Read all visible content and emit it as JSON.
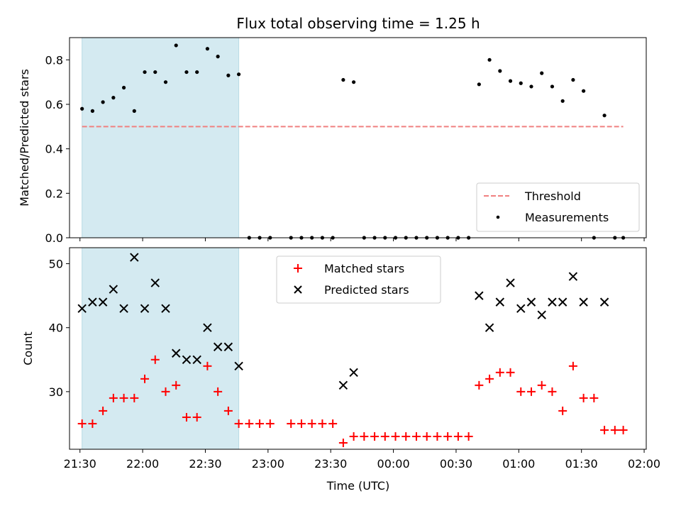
{
  "chart_data": [
    {
      "type": "scatter",
      "panel": "top",
      "title": "Flux total observing time = 1.25 h",
      "xlabel": "",
      "ylabel": "Matched/Predicted stars",
      "xlim": [
        "21:25",
        "02:01"
      ],
      "ylim": [
        0,
        0.9
      ],
      "yticks": [
        "0.0",
        "0.2",
        "0.4",
        "0.6",
        "0.8"
      ],
      "grid": false,
      "legend": "lower-right",
      "shaded_span": [
        "21:31",
        "22:46"
      ],
      "threshold": {
        "name": "Threshold",
        "y": 0.5,
        "x_range": [
          "21:31",
          "01:50"
        ]
      },
      "series": [
        {
          "name": "Measurements",
          "points": [
            [
              "21:31",
              0.58
            ],
            [
              "21:36",
              0.57
            ],
            [
              "21:41",
              0.61
            ],
            [
              "21:46",
              0.63
            ],
            [
              "21:51",
              0.675
            ],
            [
              "21:56",
              0.57
            ],
            [
              "22:01",
              0.745
            ],
            [
              "22:06",
              0.745
            ],
            [
              "22:11",
              0.7
            ],
            [
              "22:16",
              0.865
            ],
            [
              "22:21",
              0.745
            ],
            [
              "22:26",
              0.745
            ],
            [
              "22:31",
              0.85
            ],
            [
              "22:36",
              0.815
            ],
            [
              "22:41",
              0.73
            ],
            [
              "22:46",
              0.735
            ],
            [
              "22:51",
              0.0
            ],
            [
              "22:56",
              0.0
            ],
            [
              "23:01",
              0.0
            ],
            [
              "23:11",
              0.0
            ],
            [
              "23:16",
              0.0
            ],
            [
              "23:21",
              0.0
            ],
            [
              "23:26",
              0.0
            ],
            [
              "23:31",
              0.0
            ],
            [
              "23:36",
              0.71
            ],
            [
              "23:41",
              0.7
            ],
            [
              "23:46",
              0.0
            ],
            [
              "23:51",
              0.0
            ],
            [
              "23:56",
              0.0
            ],
            [
              "00:01",
              0.0
            ],
            [
              "00:06",
              0.0
            ],
            [
              "00:11",
              0.0
            ],
            [
              "00:16",
              0.0
            ],
            [
              "00:21",
              0.0
            ],
            [
              "00:26",
              0.0
            ],
            [
              "00:31",
              0.0
            ],
            [
              "00:36",
              0.0
            ],
            [
              "00:41",
              0.69
            ],
            [
              "00:46",
              0.8
            ],
            [
              "00:51",
              0.75
            ],
            [
              "00:56",
              0.705
            ],
            [
              "01:01",
              0.695
            ],
            [
              "01:06",
              0.68
            ],
            [
              "01:11",
              0.74
            ],
            [
              "01:16",
              0.68
            ],
            [
              "01:21",
              0.615
            ],
            [
              "01:26",
              0.71
            ],
            [
              "01:31",
              0.66
            ],
            [
              "01:36",
              0.0
            ],
            [
              "01:41",
              0.55
            ],
            [
              "01:46",
              0.0
            ],
            [
              "01:50",
              0.0
            ]
          ]
        }
      ]
    },
    {
      "type": "scatter",
      "panel": "bottom",
      "title": "",
      "xlabel": "Time (UTC)",
      "ylabel": "Count",
      "xlim": [
        "21:25",
        "02:01"
      ],
      "ylim": [
        21,
        52.5
      ],
      "xticks": [
        "21:30",
        "22:00",
        "22:30",
        "23:00",
        "23:30",
        "00:00",
        "00:30",
        "01:00",
        "01:30",
        "02:00"
      ],
      "yticks": [
        "30",
        "40",
        "50"
      ],
      "grid": false,
      "legend": "upper-center",
      "shaded_span": [
        "21:31",
        "22:46"
      ],
      "series": [
        {
          "name": "Matched stars",
          "marker": "plus",
          "points": [
            [
              "21:31",
              25
            ],
            [
              "21:36",
              25
            ],
            [
              "21:41",
              27
            ],
            [
              "21:46",
              29
            ],
            [
              "21:51",
              29
            ],
            [
              "21:56",
              29
            ],
            [
              "22:01",
              32
            ],
            [
              "22:06",
              35
            ],
            [
              "22:11",
              30
            ],
            [
              "22:16",
              31
            ],
            [
              "22:21",
              26
            ],
            [
              "22:26",
              26
            ],
            [
              "22:31",
              34
            ],
            [
              "22:36",
              30
            ],
            [
              "22:41",
              27
            ],
            [
              "22:46",
              25
            ],
            [
              "22:51",
              25
            ],
            [
              "22:56",
              25
            ],
            [
              "23:01",
              25
            ],
            [
              "23:11",
              25
            ],
            [
              "23:16",
              25
            ],
            [
              "23:21",
              25
            ],
            [
              "23:26",
              25
            ],
            [
              "23:31",
              25
            ],
            [
              "23:36",
              22
            ],
            [
              "23:41",
              23
            ],
            [
              "23:46",
              23
            ],
            [
              "23:51",
              23
            ],
            [
              "23:56",
              23
            ],
            [
              "00:01",
              23
            ],
            [
              "00:06",
              23
            ],
            [
              "00:11",
              23
            ],
            [
              "00:16",
              23
            ],
            [
              "00:21",
              23
            ],
            [
              "00:26",
              23
            ],
            [
              "00:31",
              23
            ],
            [
              "00:36",
              23
            ],
            [
              "00:41",
              31
            ],
            [
              "00:46",
              32
            ],
            [
              "00:51",
              33
            ],
            [
              "00:56",
              33
            ],
            [
              "01:01",
              30
            ],
            [
              "01:06",
              30
            ],
            [
              "01:11",
              31
            ],
            [
              "01:16",
              30
            ],
            [
              "01:21",
              27
            ],
            [
              "01:26",
              34
            ],
            [
              "01:31",
              29
            ],
            [
              "01:36",
              29
            ],
            [
              "01:41",
              24
            ],
            [
              "01:46",
              24
            ],
            [
              "01:50",
              24
            ]
          ]
        },
        {
          "name": "Predicted stars",
          "marker": "x",
          "points": [
            [
              "21:31",
              43
            ],
            [
              "21:36",
              44
            ],
            [
              "21:41",
              44
            ],
            [
              "21:46",
              46
            ],
            [
              "21:51",
              43
            ],
            [
              "21:56",
              51
            ],
            [
              "22:01",
              43
            ],
            [
              "22:06",
              47
            ],
            [
              "22:11",
              43
            ],
            [
              "22:16",
              36
            ],
            [
              "22:21",
              35
            ],
            [
              "22:26",
              35
            ],
            [
              "22:31",
              40
            ],
            [
              "22:36",
              37
            ],
            [
              "22:41",
              37
            ],
            [
              "22:46",
              34
            ],
            [
              "23:36",
              31
            ],
            [
              "23:41",
              33
            ],
            [
              "00:41",
              45
            ],
            [
              "00:46",
              40
            ],
            [
              "00:51",
              44
            ],
            [
              "00:56",
              47
            ],
            [
              "01:01",
              43
            ],
            [
              "01:06",
              44
            ],
            [
              "01:11",
              42
            ],
            [
              "01:16",
              44
            ],
            [
              "01:21",
              44
            ],
            [
              "01:26",
              48
            ],
            [
              "01:31",
              44
            ],
            [
              "01:41",
              44
            ]
          ]
        }
      ]
    }
  ],
  "colors": {
    "shade": "#d4eaf1",
    "threshold": "#f08080",
    "matched": "#ff0000",
    "predicted": "#000000",
    "measurement": "#000000"
  }
}
